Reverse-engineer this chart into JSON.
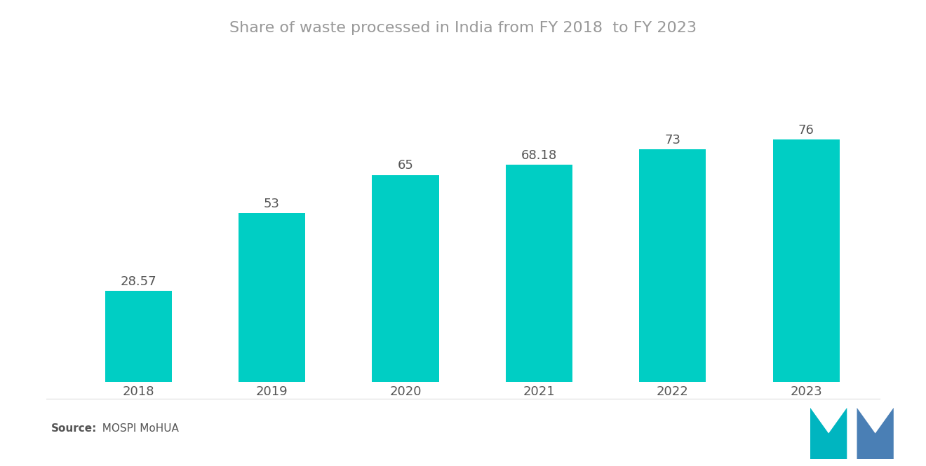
{
  "title": "Share of waste processed in India from FY 2018  to FY 2023",
  "categories": [
    "2018",
    "2019",
    "2020",
    "2021",
    "2022",
    "2023"
  ],
  "values": [
    28.57,
    53,
    65,
    68.18,
    73,
    76
  ],
  "value_labels": [
    "28.57",
    "53",
    "65",
    "68.18",
    "73",
    "76"
  ],
  "bar_color": "#00CEC4",
  "label_color": "#555555",
  "title_color": "#999999",
  "source_label": "Source:",
  "source_value": "  MOSPI MoHUA",
  "background_color": "#ffffff",
  "bar_width": 0.5,
  "ylim": [
    0,
    95
  ],
  "title_fontsize": 16,
  "label_fontsize": 13,
  "tick_fontsize": 13,
  "source_fontsize": 11,
  "logo_left_color": "#00B5C0",
  "logo_right_color": "#4A7FB5"
}
